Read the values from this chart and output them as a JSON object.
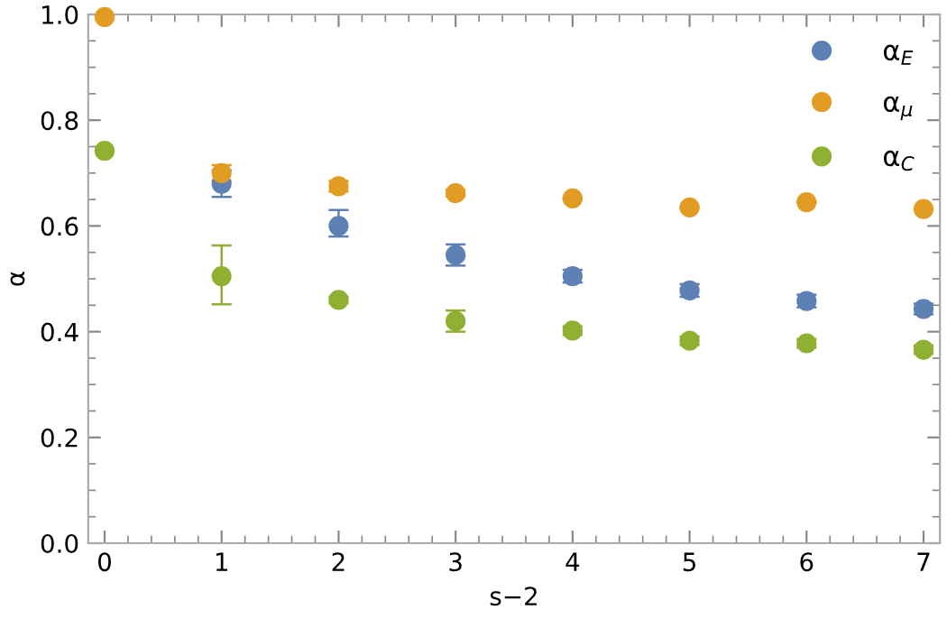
{
  "chart_data": {
    "type": "scatter",
    "xlabel": "s−2",
    "ylabel": "α",
    "x": [
      0,
      1,
      2,
      3,
      4,
      5,
      6,
      7
    ],
    "series": [
      {
        "name": "α$_{E}$",
        "color": "#5e81b5",
        "values": [
          null,
          0.68,
          0.6,
          0.545,
          0.505,
          0.478,
          0.458,
          0.443
        ],
        "errors": [
          null,
          0.025,
          [
            0.58,
            0.63
          ],
          0.02,
          0.012,
          0.012,
          0.012,
          0.01
        ]
      },
      {
        "name": "α$_{μ}$",
        "color": "#e19c24",
        "values": [
          0.995,
          0.7,
          0.675,
          0.662,
          0.652,
          0.635,
          0.645,
          0.632
        ],
        "errors": [
          null,
          0.015,
          0.01,
          0.006,
          null,
          null,
          null,
          null
        ]
      },
      {
        "name": "α$_{C}$",
        "color": "#8fb032",
        "values": [
          0.742,
          0.505,
          0.46,
          0.42,
          0.402,
          0.383,
          0.378,
          0.366
        ],
        "errors": [
          null,
          [
            0.452,
            0.563
          ],
          0.006,
          0.02,
          0.008,
          0.008,
          0.008,
          0.008
        ]
      }
    ],
    "xlim": [
      -0.14,
      7.14
    ],
    "ylim": [
      0,
      1.0
    ],
    "xticks": [
      0,
      1,
      2,
      3,
      4,
      5,
      6,
      7
    ],
    "yticks": [
      {
        "value": 0,
        "label": "0.0"
      },
      0.2,
      0.4,
      0.6,
      0.8,
      {
        "value": 1.0,
        "label": "1.0"
      }
    ],
    "marker": "circle",
    "legend": "top right",
    "grid": false
  }
}
